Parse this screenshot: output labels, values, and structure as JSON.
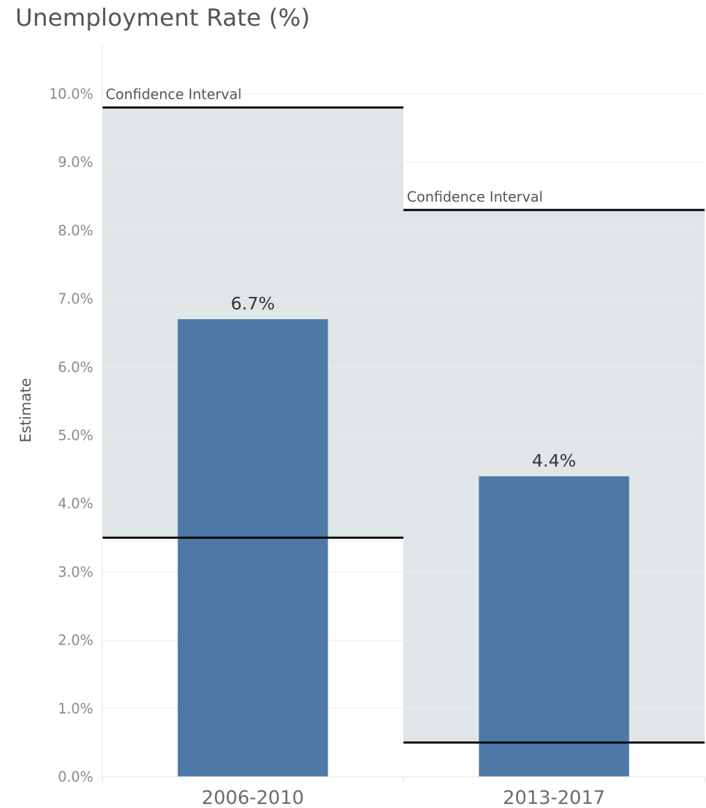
{
  "chart_data": {
    "type": "bar",
    "title": "Unemployment Rate (%)",
    "xlabel": "",
    "ylabel": "Estimate",
    "categories": [
      "2006-2010",
      "2013-2017"
    ],
    "values": [
      6.7,
      4.4
    ],
    "value_labels": [
      "6.7%",
      "4.4%"
    ],
    "confidence_intervals": [
      {
        "category": "2006-2010",
        "lower": 3.5,
        "upper": 9.8,
        "label": "Confidence Interval"
      },
      {
        "category": "2013-2017",
        "lower": 0.5,
        "upper": 8.3,
        "label": "Confidence Interval"
      }
    ],
    "ylim": [
      0,
      10
    ],
    "y_ticks": [
      0,
      1,
      2,
      3,
      4,
      5,
      6,
      7,
      8,
      9,
      10
    ],
    "y_tick_labels": [
      "0.0%",
      "1.0%",
      "2.0%",
      "3.0%",
      "4.0%",
      "5.0%",
      "6.0%",
      "7.0%",
      "8.0%",
      "9.0%",
      "10.0%"
    ],
    "grid": true,
    "legend": "none",
    "colors": {
      "bar": "#4e79a7",
      "ci_band": "#e0e6e8",
      "ci_line": "#000000",
      "grid": "#ececec"
    }
  }
}
